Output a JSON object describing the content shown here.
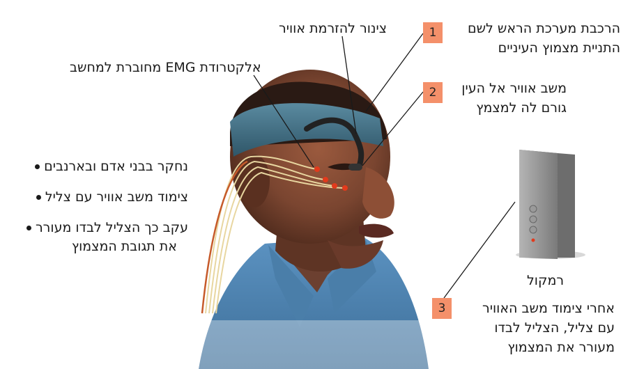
{
  "labels": {
    "tube": "צינור להזרמת אוויר",
    "electrode": "אלקטרודת EMG מחוברת למחשב",
    "speaker": "רמקול"
  },
  "steps": [
    {
      "num": "1",
      "line1": "הרכבת מערכת הראש לשם",
      "line2": "התניית מצמוץ העיניים"
    },
    {
      "num": "2",
      "line1": "משב אוויר אל העין",
      "line2": "גורם לה למצמץ"
    },
    {
      "num": "3",
      "line1": "אחרי צימוד משב האוויר",
      "line2": "עם צליל, הצליל לבדו",
      "line3": "מעורר את המצמוץ"
    }
  ],
  "bullets": [
    {
      "line1": "נחקר בבני אדם ובארנבים"
    },
    {
      "line1": "צימוד משב אוויר עם צליל"
    },
    {
      "line1": "עקב כך הצליל לבדו מעורר",
      "line2": "את תגובת המצמוץ"
    }
  ],
  "colors": {
    "badge": "#f4906a",
    "headband": "#3e6d82",
    "shirt": "#4d86b4",
    "skin": "#7a4530",
    "speaker": "#8c8c8c",
    "electrode": "#e23a1c"
  }
}
